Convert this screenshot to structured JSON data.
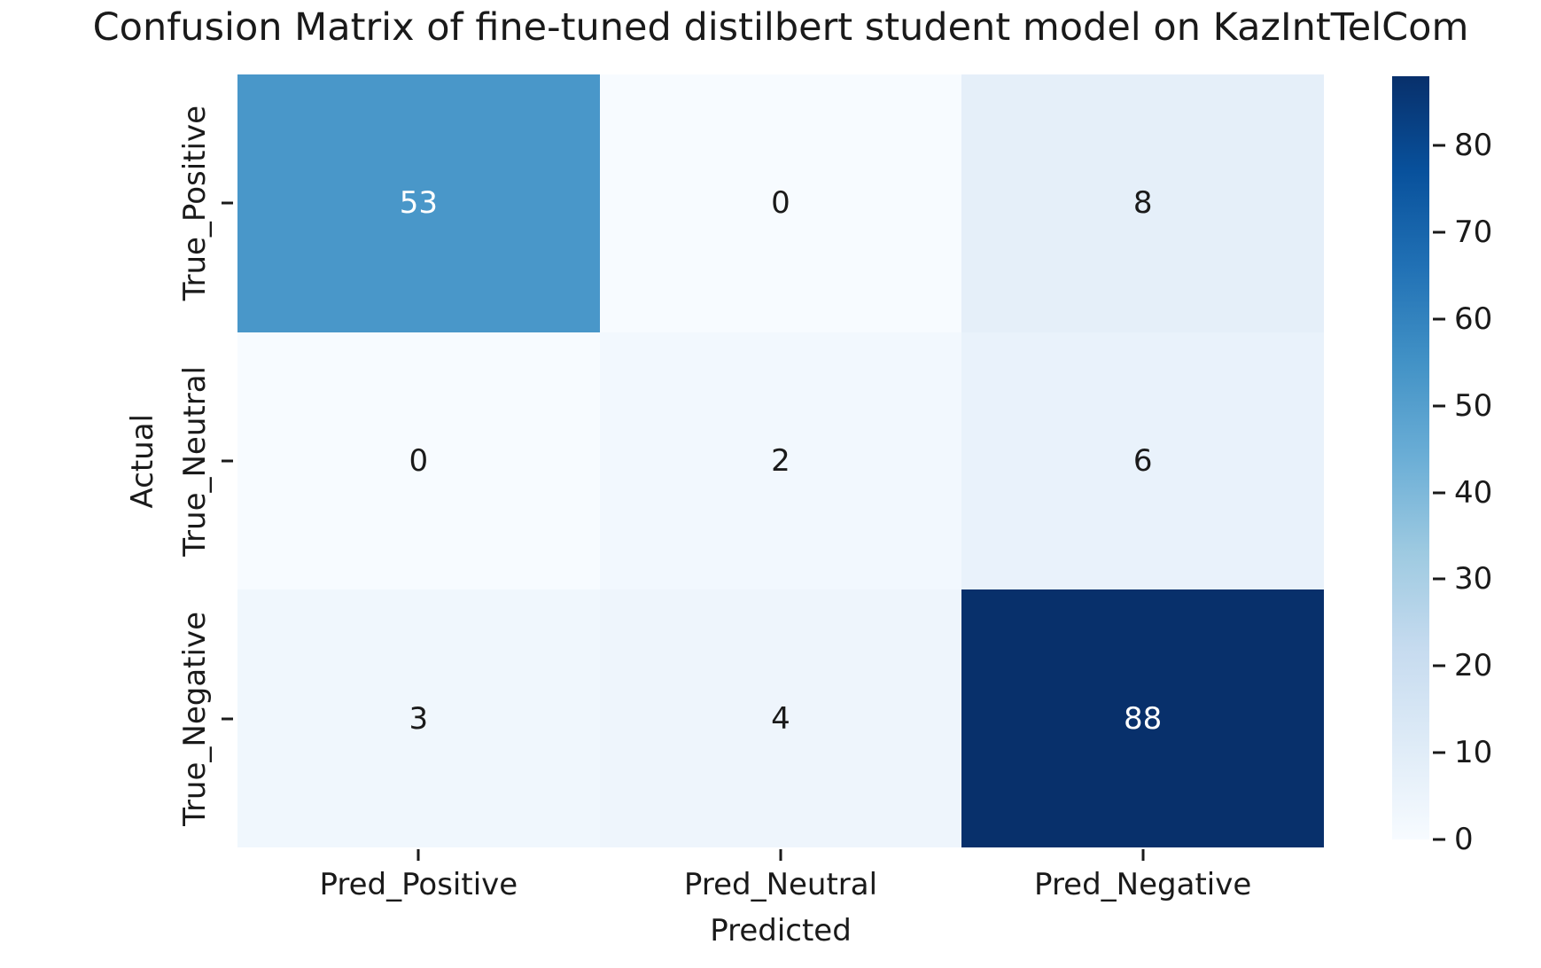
{
  "chart_data": {
    "type": "heatmap",
    "title": "Confusion Matrix of fine-tuned distilbert student model on KazIntTelCom",
    "xlabel": "Predicted",
    "ylabel": "Actual",
    "x_categories": [
      "Pred_Positive",
      "Pred_Neutral",
      "Pred_Negative"
    ],
    "y_categories": [
      "True_Positive",
      "True_Neutral",
      "True_Negative"
    ],
    "values": [
      [
        53,
        0,
        8
      ],
      [
        0,
        2,
        6
      ],
      [
        3,
        4,
        88
      ]
    ],
    "colormap": "Blues",
    "vmin": 0,
    "vmax": 88,
    "colorbar_ticks": [
      0,
      10,
      20,
      30,
      40,
      50,
      60,
      70,
      80
    ],
    "legend_position": "right-colorbar",
    "grid": false,
    "colors": {
      "cell_max": "#08306b",
      "cell_53": "#4a97c9",
      "cell_min": "#f7fbff",
      "annot_light": "#ffffff",
      "annot_dark": "#1a1a1a",
      "text": "#1a1a1a",
      "background": "#ffffff"
    }
  }
}
